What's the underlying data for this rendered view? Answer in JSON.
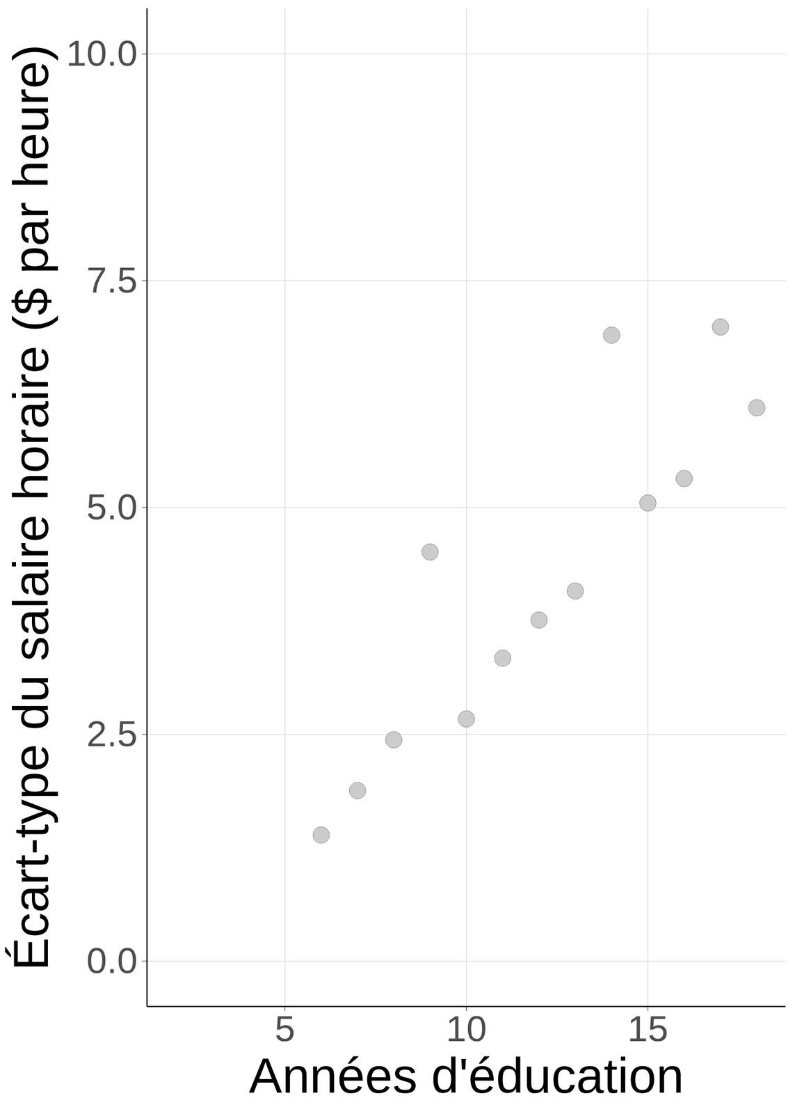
{
  "chart_data": {
    "type": "scatter",
    "x_label": "Années d'éducation",
    "y_label": "Écart-type du salaire horaire ($ par heure)",
    "x": [
      6,
      7,
      8,
      9,
      10,
      11,
      12,
      13,
      14,
      15,
      16,
      17,
      18
    ],
    "values": [
      1.39,
      1.88,
      2.44,
      4.51,
      2.67,
      3.34,
      3.76,
      4.08,
      6.9,
      5.05,
      5.32,
      6.99,
      6.1
    ],
    "color": "#cccccc",
    "marker": "circle",
    "xlim": [
      1.2,
      18.8
    ],
    "xticks": [
      5,
      10,
      15
    ],
    "ylim": [
      -0.5,
      10.5
    ],
    "yticks": [
      {
        "value": 0,
        "label": "0.0"
      },
      {
        "value": 2.5,
        "label": "2.5"
      },
      {
        "value": 5,
        "label": "5.0"
      },
      {
        "value": 7.5,
        "label": "7.5"
      },
      {
        "value": 10,
        "label": "10.0"
      }
    ],
    "grid": true
  }
}
